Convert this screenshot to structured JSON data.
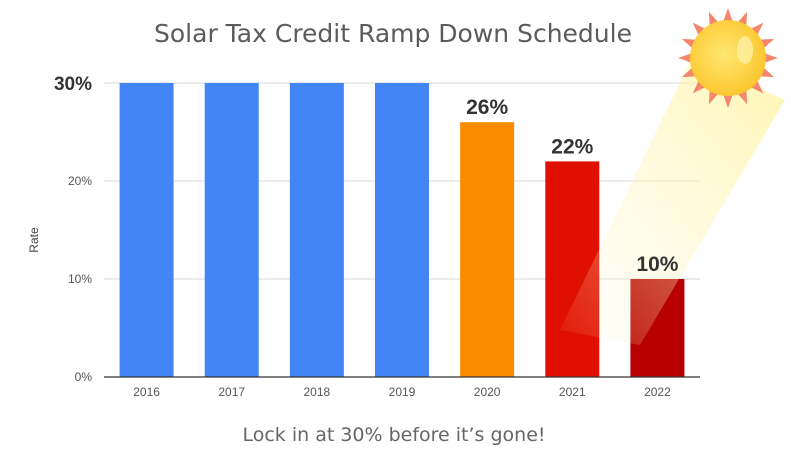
{
  "chart_data": {
    "type": "bar",
    "title": "Solar Tax Credit Ramp Down Schedule",
    "ylabel": "Rate",
    "xlabel": "",
    "categories": [
      "2016",
      "2017",
      "2018",
      "2019",
      "2020",
      "2021",
      "2022"
    ],
    "values": [
      30,
      30,
      30,
      30,
      26,
      22,
      10
    ],
    "bar_colors": [
      "#4285f4",
      "#4285f4",
      "#4285f4",
      "#4285f4",
      "#fb8c00",
      "#e01000",
      "#b80000"
    ],
    "data_labels": [
      "",
      "",
      "",
      "",
      "26%",
      "22%",
      "10%"
    ],
    "yticks": [
      {
        "value": 0,
        "label": "0%"
      },
      {
        "value": 10,
        "label": "10%"
      },
      {
        "value": 20,
        "label": "20%"
      },
      {
        "value": 30,
        "label": "30%"
      }
    ],
    "ylim": [
      0,
      30
    ],
    "grid": true,
    "legend": "none"
  },
  "caption": "Lock in at 30% before it’s gone!",
  "decoration": {
    "icon": "sun-icon",
    "sun_color": "#fdd835",
    "ray_color": "#f4866c"
  }
}
